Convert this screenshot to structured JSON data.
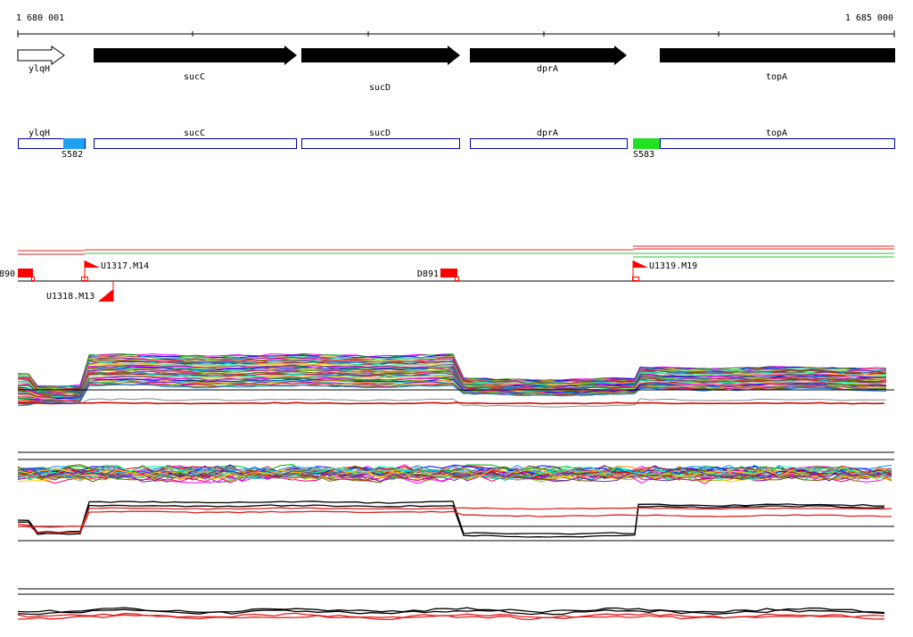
{
  "coordinates": {
    "start_label": "1 680 001",
    "end_label": "1 685 000"
  },
  "genes": [
    {
      "name": "ylqH",
      "direction": "forward",
      "style": "outline"
    },
    {
      "name": "sucC",
      "direction": "forward",
      "style": "filled"
    },
    {
      "name": "sucD",
      "direction": "forward",
      "style": "filled"
    },
    {
      "name": "dprA",
      "direction": "forward",
      "style": "filled"
    },
    {
      "name": "topA",
      "direction": "forward",
      "style": "filled"
    }
  ],
  "transcription_units": [
    {
      "name": "ylqH"
    },
    {
      "name": "sucC"
    },
    {
      "name": "sucD"
    },
    {
      "name": "dprA"
    },
    {
      "name": "topA"
    }
  ],
  "segments": [
    {
      "name": "S582",
      "color": "#1ea0f0"
    },
    {
      "name": "S583",
      "color": "#22e022"
    }
  ],
  "promoters": [
    {
      "name": "890",
      "kind": "box"
    },
    {
      "name": "U1317.M14",
      "kind": "flag"
    },
    {
      "name": "U1318.M13",
      "kind": "flag-down"
    },
    {
      "name": "D891",
      "kind": "box"
    },
    {
      "name": "U1319.M19",
      "kind": "flag"
    }
  ],
  "colors": {
    "outline": "#0000aa",
    "promoter": "#ff0000",
    "track_red": "#e02020",
    "track_green": "#30c030",
    "series_palette": [
      "#ff00ff",
      "#00aa00",
      "#0000ff",
      "#ff8800",
      "#00cccc",
      "#aa00aa",
      "#88cc00",
      "#ff0066",
      "#666600",
      "#0088ff",
      "#cc0000",
      "#00ffaa",
      "#aaaaaa",
      "#ffcc00",
      "#663399"
    ]
  }
}
